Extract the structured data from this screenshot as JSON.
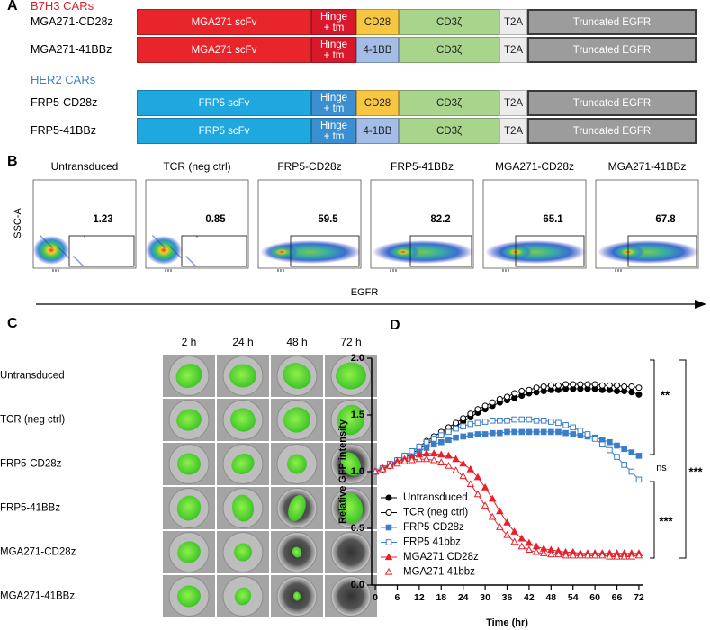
{
  "panel_a": {
    "label": "A",
    "groups": [
      {
        "title": "B7H3 CARs",
        "constructs": [
          {
            "name": "MGA271-CD28z",
            "segments": [
              "MGA271 scFv",
              "Hinge + tm",
              "CD28",
              "CD3ζ",
              "T2A",
              "Truncated EGFR"
            ]
          },
          {
            "name": "MGA271-41BBz",
            "segments": [
              "MGA271 scFv",
              "Hinge + tm",
              "4-1BB",
              "CD3ζ",
              "T2A",
              "Truncated EGFR"
            ]
          }
        ]
      },
      {
        "title": "HER2 CARs",
        "constructs": [
          {
            "name": "FRP5-CD28z",
            "segments": [
              "FRP5 scFv",
              "Hinge + tm",
              "CD28",
              "CD3ζ",
              "T2A",
              "Truncated EGFR"
            ]
          },
          {
            "name": "FRP5-41BBz",
            "segments": [
              "FRP5 scFv",
              "Hinge + tm",
              "4-1BB",
              "CD3ζ",
              "T2A",
              "Truncated EGFR"
            ]
          }
        ]
      }
    ]
  },
  "panel_b": {
    "label": "B",
    "y_label": "SSC-A",
    "x_label": "EGFR",
    "plots": [
      {
        "name": "Untransduced",
        "percent": 1.23
      },
      {
        "name": "TCR (neg ctrl)",
        "percent": 0.85
      },
      {
        "name": "FRP5-CD28z",
        "percent": 59.5
      },
      {
        "name": "FRP5-41BBz",
        "percent": 82.2
      },
      {
        "name": "MGA271-CD28z",
        "percent": 65.1
      },
      {
        "name": "MGA271-41BBz",
        "percent": 67.8
      }
    ]
  },
  "panel_c": {
    "label": "C",
    "times": [
      "2 h",
      "24 h",
      "48 h",
      "72 h"
    ],
    "rows": [
      "Untransduced",
      "TCR (neg ctrl)",
      "FRP5-CD28z",
      "FRP5-41BBz",
      "MGA271-CD28z",
      "MGA271-41BBz"
    ]
  },
  "chart_data": {
    "type": "line",
    "panel_label": "D",
    "x_label": "Time (hr)",
    "y_label": "Relative GFP intensity",
    "x": [
      0,
      2,
      4,
      6,
      8,
      10,
      12,
      14,
      16,
      18,
      20,
      22,
      24,
      26,
      28,
      30,
      32,
      34,
      36,
      38,
      40,
      42,
      44,
      46,
      48,
      50,
      52,
      54,
      56,
      58,
      60,
      62,
      64,
      66,
      68,
      70,
      72
    ],
    "xlim": [
      -1,
      73
    ],
    "xticks": [
      0,
      6,
      12,
      18,
      24,
      30,
      36,
      42,
      48,
      54,
      60,
      66,
      72
    ],
    "ylim": [
      0,
      2
    ],
    "yticks": [
      {
        "value": 0,
        "label": "0.0"
      },
      {
        "value": 0.5,
        "label": "0.5"
      },
      {
        "value": 1,
        "label": "1.0"
      },
      {
        "value": 1.5,
        "label": "1.5"
      },
      {
        "value": 2,
        "label": "2.0"
      }
    ],
    "legend": "lower left",
    "annotations": [
      "**",
      "ns",
      "***",
      "***"
    ],
    "series": [
      {
        "name": "Untransduced",
        "color": "#000000",
        "marker": "circle",
        "filled": true,
        "values": [
          1.0,
          1.02,
          1.05,
          1.08,
          1.12,
          1.16,
          1.2,
          1.24,
          1.28,
          1.32,
          1.36,
          1.4,
          1.44,
          1.48,
          1.52,
          1.55,
          1.58,
          1.61,
          1.63,
          1.65,
          1.67,
          1.69,
          1.7,
          1.71,
          1.72,
          1.72,
          1.73,
          1.73,
          1.73,
          1.73,
          1.73,
          1.72,
          1.72,
          1.71,
          1.71,
          1.7,
          1.68
        ]
      },
      {
        "name": "TCR (neg ctrl)",
        "color": "#000000",
        "marker": "circle",
        "filled": false,
        "values": [
          1.0,
          1.03,
          1.06,
          1.1,
          1.14,
          1.18,
          1.22,
          1.27,
          1.31,
          1.35,
          1.39,
          1.43,
          1.47,
          1.51,
          1.55,
          1.58,
          1.61,
          1.64,
          1.66,
          1.69,
          1.71,
          1.72,
          1.74,
          1.75,
          1.76,
          1.76,
          1.77,
          1.77,
          1.77,
          1.77,
          1.77,
          1.76,
          1.76,
          1.76,
          1.75,
          1.75,
          1.74
        ]
      },
      {
        "name": "FRP5 CD28z",
        "color": "#3a7dc9",
        "marker": "square",
        "filled": true,
        "values": [
          1.0,
          1.03,
          1.06,
          1.09,
          1.12,
          1.15,
          1.18,
          1.21,
          1.24,
          1.26,
          1.28,
          1.3,
          1.31,
          1.32,
          1.33,
          1.33,
          1.34,
          1.34,
          1.35,
          1.35,
          1.35,
          1.35,
          1.35,
          1.35,
          1.35,
          1.35,
          1.34,
          1.33,
          1.32,
          1.31,
          1.3,
          1.28,
          1.26,
          1.23,
          1.2,
          1.17,
          1.14
        ]
      },
      {
        "name": "FRP5 41bbz",
        "color": "#3a7dc9",
        "marker": "square",
        "filled": false,
        "values": [
          1.0,
          1.03,
          1.07,
          1.1,
          1.14,
          1.18,
          1.22,
          1.26,
          1.29,
          1.32,
          1.35,
          1.38,
          1.4,
          1.42,
          1.43,
          1.44,
          1.45,
          1.45,
          1.45,
          1.46,
          1.46,
          1.46,
          1.45,
          1.45,
          1.44,
          1.43,
          1.41,
          1.39,
          1.36,
          1.33,
          1.29,
          1.24,
          1.19,
          1.13,
          1.06,
          1.0,
          0.93
        ]
      },
      {
        "name": "MGA271 CD28z",
        "color": "#e8202a",
        "marker": "triangle",
        "filled": true,
        "values": [
          1.0,
          1.03,
          1.06,
          1.09,
          1.11,
          1.13,
          1.15,
          1.16,
          1.16,
          1.15,
          1.14,
          1.11,
          1.07,
          1.02,
          0.95,
          0.86,
          0.76,
          0.65,
          0.55,
          0.47,
          0.41,
          0.37,
          0.34,
          0.32,
          0.31,
          0.3,
          0.29,
          0.29,
          0.28,
          0.28,
          0.28,
          0.28,
          0.28,
          0.28,
          0.28,
          0.28,
          0.28
        ]
      },
      {
        "name": "MGA271 41bbz",
        "color": "#e8202a",
        "marker": "triangle",
        "filled": false,
        "values": [
          1.0,
          1.02,
          1.05,
          1.07,
          1.09,
          1.1,
          1.11,
          1.11,
          1.1,
          1.08,
          1.05,
          1.01,
          0.96,
          0.89,
          0.8,
          0.7,
          0.6,
          0.51,
          0.44,
          0.38,
          0.34,
          0.31,
          0.29,
          0.28,
          0.27,
          0.27,
          0.26,
          0.26,
          0.26,
          0.26,
          0.26,
          0.26,
          0.25,
          0.25,
          0.25,
          0.25,
          0.26
        ]
      }
    ]
  }
}
